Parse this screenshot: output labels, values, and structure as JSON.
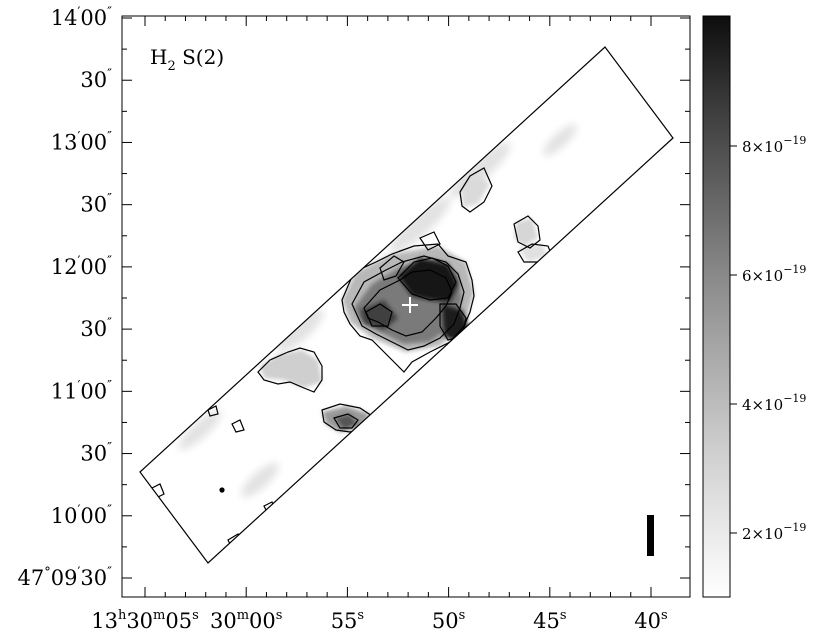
{
  "figure": {
    "panel_label": {
      "main": "H",
      "sub": "2",
      "rest": " S(2)"
    },
    "y_tick_labels": [
      {
        "deg": "",
        "min": "14",
        "sec": "00"
      },
      {
        "deg": "",
        "min": "",
        "sec": "30"
      },
      {
        "deg": "",
        "min": "13",
        "sec": "00"
      },
      {
        "deg": "",
        "min": "",
        "sec": "30"
      },
      {
        "deg": "",
        "min": "12",
        "sec": "00"
      },
      {
        "deg": "",
        "min": "",
        "sec": "30"
      },
      {
        "deg": "",
        "min": "11",
        "sec": "00"
      },
      {
        "deg": "",
        "min": "",
        "sec": "30"
      },
      {
        "deg": "",
        "min": "10",
        "sec": "00"
      },
      {
        "deg": "47",
        "min": "09",
        "sec": "30"
      }
    ],
    "x_tick_labels": [
      {
        "h": "13",
        "m": "30",
        "s": "05"
      },
      {
        "h": "",
        "m": "30",
        "s": "00"
      },
      {
        "h": "",
        "m": "",
        "s": "55"
      },
      {
        "h": "",
        "m": "",
        "s": "50"
      },
      {
        "h": "",
        "m": "",
        "s": "45"
      },
      {
        "h": "",
        "m": "",
        "s": "40"
      }
    ],
    "colorbar": {
      "ticks": [
        {
          "mant": "8",
          "exp": "−19"
        },
        {
          "mant": "6",
          "exp": "−19"
        },
        {
          "mant": "4",
          "exp": "−19"
        },
        {
          "mant": "2",
          "exp": "−19"
        }
      ],
      "symbol_times": "×10",
      "color_top": "#0d0d0d",
      "color_bottom": "#ffffff"
    },
    "colors": {
      "contour": "#000000",
      "frame": "#000000",
      "marker": "#ffffff"
    }
  }
}
